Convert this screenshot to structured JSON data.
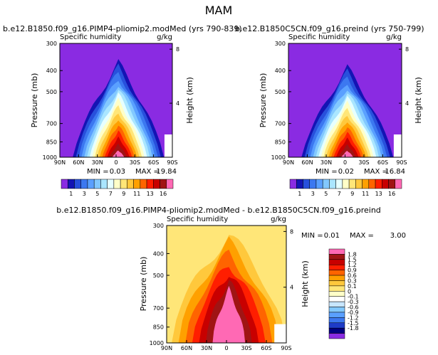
{
  "page_title": "MAM",
  "colors": {
    "abs_fill": [
      "#8a2be2",
      "#1414b4",
      "#2850dc",
      "#3c78f0",
      "#5aa0ff",
      "#82c8ff",
      "#aae6ff",
      "#e6ffff",
      "#ffffc8",
      "#ffe678",
      "#ffc83c",
      "#ffa000",
      "#ff6400",
      "#ff1e00",
      "#c80000",
      "#a01414",
      "#ff69b4"
    ],
    "diff_fill": [
      "#8a2be2",
      "#000080",
      "#1e3cc8",
      "#3c78f0",
      "#5aa0ff",
      "#82c8ff",
      "#c8e6ff",
      "#ffffff",
      "#ffffc8",
      "#ffe678",
      "#ffc83c",
      "#ffa000",
      "#ff6400",
      "#ff1e00",
      "#c80000",
      "#a01414",
      "#ff69b4"
    ]
  },
  "chart_data": [
    {
      "type": "contour",
      "title": "b.e12.B1850.f09_g16.PIMP4-pliomip2.modMed (yrs 790-839)",
      "left_label": "Specific humidity",
      "right_label": "g/kg",
      "xlabel": "",
      "ylabel": "Pressure (mb)",
      "ylabel_right": "Height (km)",
      "x_ticks": [
        "90N",
        "60N",
        "30N",
        "0",
        "30S",
        "60S",
        "90S"
      ],
      "y_ticks": [
        300,
        400,
        500,
        700,
        850,
        1000
      ],
      "height_ticks": [
        8,
        4
      ],
      "min": 0.03,
      "max": 19.84,
      "levels": [
        1,
        3,
        5,
        7,
        9,
        11,
        13,
        16
      ],
      "core_peak": 0.95,
      "summary": {
        "min_label": "MIN =",
        "min_value": "0.03",
        "max_label": "MAX =",
        "max_value": "19.84"
      },
      "colorbar": [
        "1",
        "3",
        "5",
        "7",
        "9",
        "11",
        "13",
        "16"
      ]
    },
    {
      "type": "contour",
      "title": "b.e12.B1850C5CN.f09_g16.preind (yrs 750-799)",
      "left_label": "Specific humidity",
      "right_label": "g/kg",
      "xlabel": "",
      "ylabel": "Pressure (mb)",
      "ylabel_right": "Height (km)",
      "x_ticks": [
        "90N",
        "60N",
        "30N",
        "0",
        "30S",
        "60S",
        "90S"
      ],
      "y_ticks": [
        300,
        400,
        500,
        700,
        850,
        1000
      ],
      "height_ticks": [
        8,
        4
      ],
      "min": 0.02,
      "max": 16.84,
      "levels": [
        1,
        3,
        5,
        7,
        9,
        11,
        13,
        16
      ],
      "core_peak": 0.9,
      "summary": {
        "min_label": "MIN =",
        "min_value": "0.02",
        "max_label": "MAX =",
        "max_value": "16.84"
      },
      "colorbar": [
        "1",
        "3",
        "5",
        "7",
        "9",
        "11",
        "13",
        "16"
      ]
    },
    {
      "type": "contour",
      "title": "b.e12.B1850.f09_g16.PIMP4-pliomip2.modMed - b.e12.B1850C5CN.f09_g16.preind",
      "left_label": "Specific humidity",
      "right_label": "g/kg",
      "xlabel": "",
      "ylabel": "Pressure (mb)",
      "ylabel_right": "Height (km)",
      "x_ticks": [
        "90N",
        "60N",
        "30N",
        "0",
        "30S",
        "60S",
        "90S"
      ],
      "y_ticks": [
        300,
        400,
        500,
        700,
        850,
        1000
      ],
      "height_ticks": [
        8,
        4
      ],
      "min": 0.01,
      "max": 3.0,
      "summary": {
        "min_label": "MIN =",
        "min_value": "0.01",
        "max_label": "MAX =",
        "max_value": "3.00"
      },
      "colorbar": [
        "1.8",
        "1.5",
        "1.2",
        "0.9",
        "0.6",
        "0.3",
        "0.1",
        "0",
        "-0.1",
        "-0.3",
        "-0.6",
        "-0.9",
        "-1.2",
        "-1.5",
        "-1.8"
      ]
    }
  ]
}
